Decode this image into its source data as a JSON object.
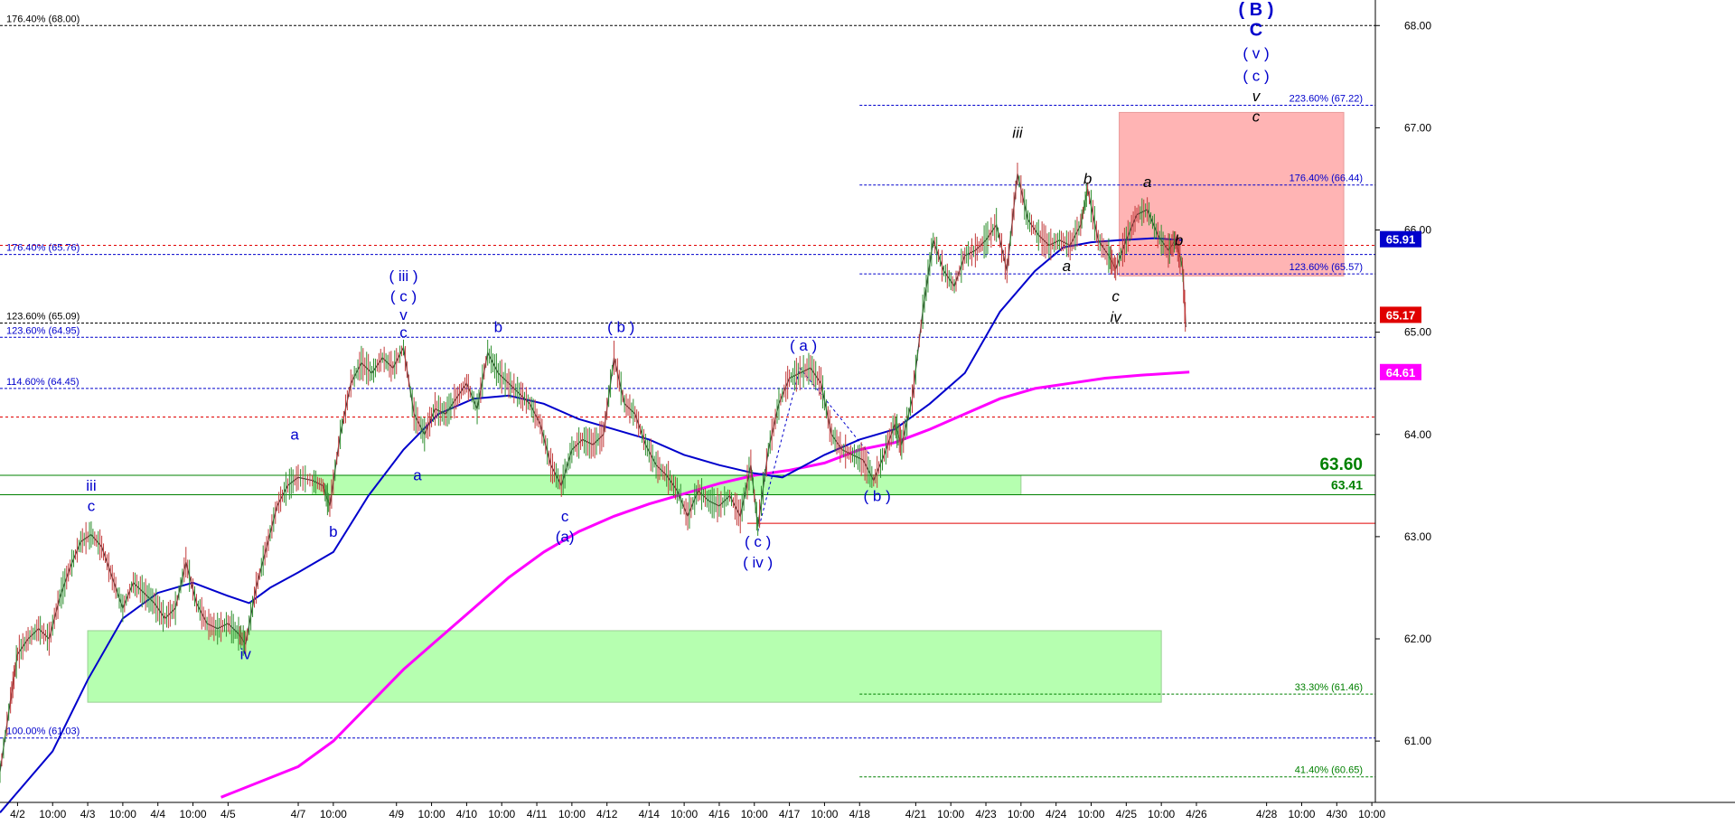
{
  "chart_data": {
    "type": "candlestick",
    "title": "",
    "ylim": [
      60.4,
      68.25
    ],
    "price_ticks": [
      61.0,
      62.0,
      63.0,
      64.0,
      65.0,
      66.0,
      67.0,
      68.0
    ],
    "price_tick_labels": [
      "61.00",
      "62.00",
      "63.00",
      "64.00",
      "65.00",
      "66.00",
      "67.00",
      "68.00"
    ],
    "x_labels": [
      "4/2",
      "10:00",
      "4/3",
      "10:00",
      "4/4",
      "10:00",
      "4/5",
      "4/7",
      "10:00",
      "4/9",
      "10:00",
      "4/10",
      "10:00",
      "4/11",
      "10:00",
      "4/12",
      "4/14",
      "10:00",
      "4/16",
      "10:00",
      "4/17",
      "10:00",
      "4/18",
      "4/21",
      "10:00",
      "4/23",
      "10:00",
      "4/24",
      "10:00",
      "4/25",
      "10:00",
      "4/26",
      "4/28",
      "10:00",
      "4/30",
      "10:00"
    ],
    "x_label_pos": [
      0.0,
      0.5,
      1.0,
      1.5,
      2.0,
      2.5,
      3.0,
      4.0,
      4.5,
      5.4,
      5.9,
      6.4,
      6.9,
      7.4,
      7.9,
      8.4,
      9.0,
      9.5,
      10.0,
      10.5,
      11.0,
      11.5,
      12.0,
      12.8,
      13.3,
      13.8,
      14.3,
      14.8,
      15.3,
      15.8,
      16.3,
      16.8,
      17.8,
      18.3,
      18.8,
      19.3
    ],
    "x_range": [
      -0.25,
      19.35
    ],
    "fib_lines": [
      {
        "label": "176.40% (68.00)",
        "value": 68.0,
        "color": "#000000",
        "side": "left"
      },
      {
        "label": "176.40% (65.76)",
        "value": 65.76,
        "color": "#0000cc",
        "side": "left"
      },
      {
        "label": "123.60% (65.09)",
        "value": 65.09,
        "color": "#000000",
        "side": "left"
      },
      {
        "label": "123.60% (64.95)",
        "value": 64.95,
        "color": "#0000cc",
        "side": "left"
      },
      {
        "label": "114.60% (64.45)",
        "value": 64.45,
        "color": "#0000cc",
        "side": "left"
      },
      {
        "label": "100.00% (61.03)",
        "value": 61.03,
        "color": "#0000cc",
        "side": "left"
      },
      {
        "label": "223.60% (67.22)",
        "value": 67.22,
        "color": "#0000cc",
        "side": "right"
      },
      {
        "label": "176.40% (66.44)",
        "value": 66.44,
        "color": "#0000cc",
        "side": "right"
      },
      {
        "label": "123.60% (65.57)",
        "value": 65.57,
        "color": "#0000cc",
        "side": "right"
      },
      {
        "label": "33.30% (61.46)",
        "value": 61.46,
        "color": "#008000",
        "side": "right"
      },
      {
        "label": "41.40% (60.65)",
        "value": 60.65,
        "color": "#008000",
        "side": "right"
      }
    ],
    "support_zones": [
      {
        "name": "upper-support",
        "x0": 4.2,
        "x1": 14.3,
        "y0": 63.41,
        "y1": 63.6
      },
      {
        "name": "lower-support",
        "x0": 1.0,
        "x1": 16.3,
        "y0": 61.38,
        "y1": 62.08
      }
    ],
    "target_zone": {
      "x0": 15.7,
      "x1": 18.9,
      "y0": 65.55,
      "y1": 67.15
    },
    "horizontal_levels": [
      {
        "label": "63.60",
        "value": 63.6,
        "color": "#008000",
        "bold": true
      },
      {
        "label": "63.41",
        "value": 63.41,
        "color": "#008000",
        "bold": false
      }
    ],
    "red_dotted": [
      65.85,
      64.17
    ],
    "red_solid": 63.13,
    "last_price_tags": [
      {
        "label": "65.91",
        "value": 65.91,
        "color": "#0000cc"
      },
      {
        "label": "65.17",
        "value": 65.17,
        "color": "#e00000"
      },
      {
        "label": "64.61",
        "value": 64.61,
        "color": "#ff00ff"
      }
    ],
    "wave_labels": [
      {
        "text": "iii",
        "x": 1.05,
        "y": 63.45,
        "color": "#0000cc"
      },
      {
        "text": "c",
        "x": 1.05,
        "y": 63.25,
        "color": "#0000cc"
      },
      {
        "text": "iv",
        "x": 3.25,
        "y": 61.8,
        "color": "#0000cc"
      },
      {
        "text": "a",
        "x": 3.95,
        "y": 63.95,
        "color": "#0000cc"
      },
      {
        "text": "b",
        "x": 4.5,
        "y": 63.0,
        "color": "#0000cc"
      },
      {
        "text": "( iii )",
        "x": 5.5,
        "y": 65.5,
        "color": "#0000cc"
      },
      {
        "text": "( c )",
        "x": 5.5,
        "y": 65.3,
        "color": "#0000cc"
      },
      {
        "text": "v",
        "x": 5.5,
        "y": 65.12,
        "color": "#0000cc"
      },
      {
        "text": "c",
        "x": 5.5,
        "y": 64.95,
        "color": "#0000cc"
      },
      {
        "text": "a",
        "x": 5.7,
        "y": 63.55,
        "color": "#0000cc"
      },
      {
        "text": "b",
        "x": 6.85,
        "y": 65.0,
        "color": "#0000cc"
      },
      {
        "text": "c",
        "x": 7.8,
        "y": 63.15,
        "color": "#0000cc"
      },
      {
        "text": "(a)",
        "x": 7.8,
        "y": 62.95,
        "color": "#0000cc"
      },
      {
        "text": "( b )",
        "x": 8.6,
        "y": 65.0,
        "color": "#0000cc"
      },
      {
        "text": "( a )",
        "x": 11.2,
        "y": 64.82,
        "color": "#0000cc"
      },
      {
        "text": "( b )",
        "x": 12.25,
        "y": 63.35,
        "color": "#0000cc"
      },
      {
        "text": "( c )",
        "x": 10.55,
        "y": 62.9,
        "color": "#0000cc"
      },
      {
        "text": "( iv )",
        "x": 10.55,
        "y": 62.7,
        "color": "#0000cc"
      },
      {
        "text": "iii",
        "x": 14.25,
        "y": 66.9,
        "color": "#000000"
      },
      {
        "text": "b",
        "x": 15.25,
        "y": 66.45,
        "color": "#000000"
      },
      {
        "text": "a",
        "x": 14.95,
        "y": 65.6,
        "color": "#000000"
      },
      {
        "text": "c",
        "x": 15.65,
        "y": 65.3,
        "color": "#000000"
      },
      {
        "text": "iv",
        "x": 15.65,
        "y": 65.1,
        "color": "#000000"
      },
      {
        "text": "a",
        "x": 16.1,
        "y": 66.42,
        "color": "#000000"
      },
      {
        "text": "b",
        "x": 16.55,
        "y": 65.85,
        "color": "#000000"
      },
      {
        "text": "( B )",
        "x": 17.65,
        "y": 68.1,
        "color": "#0000cc"
      },
      {
        "text": "C",
        "x": 17.65,
        "y": 67.9,
        "color": "#0000cc"
      },
      {
        "text": "( v )",
        "x": 17.65,
        "y": 67.68,
        "color": "#0000cc"
      },
      {
        "text": "( c )",
        "x": 17.65,
        "y": 67.46,
        "color": "#0000cc"
      },
      {
        "text": "v",
        "x": 17.65,
        "y": 67.26,
        "color": "#000000"
      },
      {
        "text": "c",
        "x": 17.65,
        "y": 67.06,
        "color": "#000000"
      }
    ],
    "price_path": [
      [
        -0.25,
        60.7
      ],
      [
        -0.1,
        61.4
      ],
      [
        0.0,
        61.85
      ],
      [
        0.15,
        62.0
      ],
      [
        0.3,
        62.1
      ],
      [
        0.45,
        62.0
      ],
      [
        0.6,
        62.4
      ],
      [
        0.75,
        62.7
      ],
      [
        0.9,
        62.95
      ],
      [
        1.05,
        63.02
      ],
      [
        1.2,
        62.9
      ],
      [
        1.35,
        62.6
      ],
      [
        1.5,
        62.3
      ],
      [
        1.65,
        62.55
      ],
      [
        1.8,
        62.45
      ],
      [
        1.95,
        62.35
      ],
      [
        2.1,
        62.2
      ],
      [
        2.25,
        62.3
      ],
      [
        2.4,
        62.75
      ],
      [
        2.55,
        62.35
      ],
      [
        2.7,
        62.15
      ],
      [
        2.85,
        62.1
      ],
      [
        3.0,
        62.15
      ],
      [
        3.15,
        62.05
      ],
      [
        3.25,
        61.95
      ],
      [
        3.4,
        62.5
      ],
      [
        3.55,
        62.9
      ],
      [
        3.7,
        63.3
      ],
      [
        3.85,
        63.5
      ],
      [
        4.0,
        63.58
      ],
      [
        4.2,
        63.55
      ],
      [
        4.35,
        63.5
      ],
      [
        4.45,
        63.3
      ],
      [
        4.6,
        64.0
      ],
      [
        4.75,
        64.5
      ],
      [
        4.9,
        64.7
      ],
      [
        5.05,
        64.6
      ],
      [
        5.2,
        64.75
      ],
      [
        5.35,
        64.65
      ],
      [
        5.5,
        64.85
      ],
      [
        5.65,
        64.2
      ],
      [
        5.8,
        64.0
      ],
      [
        5.95,
        64.25
      ],
      [
        6.1,
        64.2
      ],
      [
        6.25,
        64.35
      ],
      [
        6.4,
        64.5
      ],
      [
        6.55,
        64.25
      ],
      [
        6.7,
        64.8
      ],
      [
        6.85,
        64.6
      ],
      [
        7.0,
        64.5
      ],
      [
        7.15,
        64.4
      ],
      [
        7.3,
        64.3
      ],
      [
        7.45,
        64.1
      ],
      [
        7.6,
        63.7
      ],
      [
        7.75,
        63.5
      ],
      [
        7.9,
        63.85
      ],
      [
        8.05,
        63.95
      ],
      [
        8.2,
        63.9
      ],
      [
        8.35,
        64.0
      ],
      [
        8.5,
        64.75
      ],
      [
        8.65,
        64.3
      ],
      [
        8.8,
        64.2
      ],
      [
        8.95,
        63.9
      ],
      [
        9.1,
        63.7
      ],
      [
        9.25,
        63.6
      ],
      [
        9.4,
        63.45
      ],
      [
        9.55,
        63.2
      ],
      [
        9.7,
        63.45
      ],
      [
        9.85,
        63.35
      ],
      [
        10.0,
        63.3
      ],
      [
        10.15,
        63.4
      ],
      [
        10.3,
        63.2
      ],
      [
        10.45,
        63.7
      ],
      [
        10.55,
        63.1
      ],
      [
        10.7,
        63.85
      ],
      [
        10.85,
        64.3
      ],
      [
        11.0,
        64.55
      ],
      [
        11.15,
        64.6
      ],
      [
        11.3,
        64.65
      ],
      [
        11.45,
        64.5
      ],
      [
        11.6,
        64.0
      ],
      [
        11.75,
        63.85
      ],
      [
        11.9,
        63.8
      ],
      [
        12.05,
        63.75
      ],
      [
        12.2,
        63.55
      ],
      [
        12.35,
        63.8
      ],
      [
        12.5,
        64.1
      ],
      [
        12.6,
        63.9
      ],
      [
        12.75,
        64.35
      ],
      [
        12.9,
        65.2
      ],
      [
        13.05,
        65.9
      ],
      [
        13.2,
        65.6
      ],
      [
        13.35,
        65.45
      ],
      [
        13.5,
        65.75
      ],
      [
        13.65,
        65.8
      ],
      [
        13.8,
        65.9
      ],
      [
        13.95,
        66.05
      ],
      [
        14.1,
        65.6
      ],
      [
        14.25,
        66.55
      ],
      [
        14.4,
        66.1
      ],
      [
        14.55,
        65.95
      ],
      [
        14.7,
        65.85
      ],
      [
        14.85,
        65.9
      ],
      [
        15.0,
        65.85
      ],
      [
        15.15,
        66.05
      ],
      [
        15.25,
        66.4
      ],
      [
        15.4,
        65.9
      ],
      [
        15.55,
        65.75
      ],
      [
        15.65,
        65.62
      ],
      [
        15.8,
        65.9
      ],
      [
        15.95,
        66.15
      ],
      [
        16.1,
        66.2
      ],
      [
        16.25,
        65.95
      ],
      [
        16.4,
        65.8
      ],
      [
        16.5,
        65.9
      ],
      [
        16.6,
        65.65
      ],
      [
        16.65,
        65.05
      ]
    ],
    "ma_blue": [
      [
        -0.25,
        60.3
      ],
      [
        0.5,
        60.9
      ],
      [
        1.0,
        61.6
      ],
      [
        1.5,
        62.2
      ],
      [
        2.0,
        62.45
      ],
      [
        2.5,
        62.55
      ],
      [
        3.0,
        62.42
      ],
      [
        3.3,
        62.35
      ],
      [
        3.6,
        62.5
      ],
      [
        4.0,
        62.65
      ],
      [
        4.5,
        62.85
      ],
      [
        5.0,
        63.4
      ],
      [
        5.5,
        63.85
      ],
      [
        6.0,
        64.2
      ],
      [
        6.5,
        64.35
      ],
      [
        7.0,
        64.38
      ],
      [
        7.5,
        64.3
      ],
      [
        8.0,
        64.15
      ],
      [
        8.5,
        64.05
      ],
      [
        9.0,
        63.95
      ],
      [
        9.5,
        63.8
      ],
      [
        10.0,
        63.7
      ],
      [
        10.5,
        63.62
      ],
      [
        10.9,
        63.58
      ],
      [
        11.5,
        63.8
      ],
      [
        12.0,
        63.95
      ],
      [
        12.5,
        64.05
      ],
      [
        13.0,
        64.3
      ],
      [
        13.5,
        64.6
      ],
      [
        14.0,
        65.2
      ],
      [
        14.5,
        65.6
      ],
      [
        14.9,
        65.83
      ],
      [
        15.3,
        65.88
      ],
      [
        15.7,
        65.9
      ],
      [
        16.2,
        65.92
      ],
      [
        16.6,
        65.9
      ]
    ],
    "ma_magenta": [
      [
        2.9,
        60.45
      ],
      [
        4.0,
        60.75
      ],
      [
        4.5,
        61.0
      ],
      [
        5.0,
        61.35
      ],
      [
        5.5,
        61.7
      ],
      [
        6.0,
        62.0
      ],
      [
        6.5,
        62.3
      ],
      [
        7.0,
        62.6
      ],
      [
        7.5,
        62.85
      ],
      [
        8.0,
        63.05
      ],
      [
        8.5,
        63.2
      ],
      [
        9.0,
        63.32
      ],
      [
        9.5,
        63.42
      ],
      [
        10.0,
        63.52
      ],
      [
        10.5,
        63.6
      ],
      [
        11.0,
        63.65
      ],
      [
        11.5,
        63.72
      ],
      [
        12.0,
        63.85
      ],
      [
        12.5,
        63.92
      ],
      [
        13.0,
        64.05
      ],
      [
        13.5,
        64.2
      ],
      [
        14.0,
        64.35
      ],
      [
        14.5,
        64.45
      ],
      [
        15.0,
        64.5
      ],
      [
        15.5,
        64.55
      ],
      [
        16.0,
        64.58
      ],
      [
        16.7,
        64.61
      ]
    ],
    "dotted_wave": [
      [
        10.55,
        63.05
      ],
      [
        11.15,
        64.65
      ],
      [
        12.15,
        63.8
      ]
    ]
  }
}
